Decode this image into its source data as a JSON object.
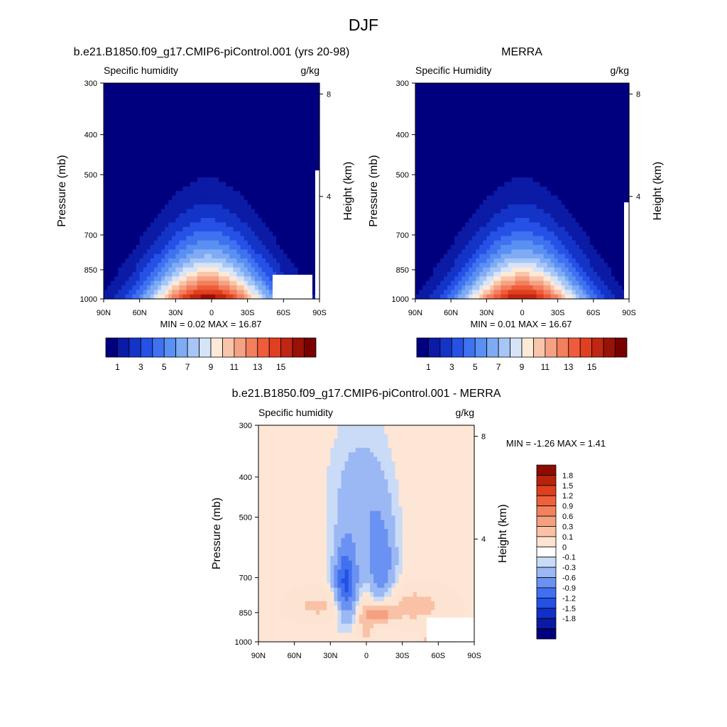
{
  "page": {
    "title": "DJF"
  },
  "colors": {
    "humidity": [
      "#00007f",
      "#0b1ba5",
      "#1434c8",
      "#2651e6",
      "#3f71f0",
      "#5a8ff3",
      "#7fabf5",
      "#a7c6f7",
      "#d6e4f8",
      "#fde9d7",
      "#f9c5aa",
      "#f5a284",
      "#f37f5e",
      "#ef5c3b",
      "#e0401f",
      "#c02611",
      "#9a1106",
      "#7a0000"
    ],
    "difference": [
      "#00007f",
      "#0a1aa4",
      "#1230c6",
      "#2450e4",
      "#4070ef",
      "#6a92f2",
      "#9bb8f4",
      "#c9dbf7",
      "#ffffff",
      "#fde4d2",
      "#f9c1a6",
      "#f5a080",
      "#f2825d",
      "#ef5f3c",
      "#de3f1d",
      "#b8230c",
      "#8c0c02"
    ]
  },
  "labels": {
    "min_max_1": "MIN =   0.02  MAX =  16.87",
    "min_max_2": "MIN =   0.01  MAX =  16.67",
    "min_max_3": "MIN =  -1.26  MAX =   1.41"
  },
  "chart_data": [
    {
      "type": "heatmap",
      "title": "b.e21.B1850.f09_g17.CMIP6-piControl.001 (yrs 20-98)",
      "left_string": "Specific humidity",
      "right_string": "g/kg",
      "ylabel": "Pressure (mb)",
      "ylabel_right": "Height (km)",
      "x_tick_labels": [
        "90N",
        "60N",
        "30N",
        "0",
        "30S",
        "60S",
        "90S"
      ],
      "y_tick_labels": [
        "300",
        "400",
        "500",
        "700",
        "850",
        "1000"
      ],
      "y_right_tick_labels": [
        "8",
        "4"
      ],
      "y_log_scale": true,
      "ylim": [
        1000,
        300
      ],
      "colorbar_levels": [
        "1",
        "3",
        "5",
        "7",
        "9",
        "11",
        "13",
        "15"
      ],
      "min": 0.02,
      "max": 16.87,
      "peak_value_near": [
        0,
        1000
      ]
    },
    {
      "type": "heatmap",
      "title": "MERRA",
      "left_string": "Specific Humidity",
      "right_string": "g/kg",
      "ylabel": "Pressure (mb)",
      "ylabel_right": "Height (km)",
      "x_tick_labels": [
        "90N",
        "60N",
        "30N",
        "0",
        "30S",
        "60S",
        "90S"
      ],
      "y_tick_labels": [
        "300",
        "400",
        "500",
        "700",
        "850",
        "1000"
      ],
      "y_right_tick_labels": [
        "8",
        "4"
      ],
      "y_log_scale": true,
      "ylim": [
        1000,
        300
      ],
      "colorbar_levels": [
        "1",
        "3",
        "5",
        "7",
        "9",
        "11",
        "13",
        "15"
      ],
      "min": 0.01,
      "max": 16.67
    },
    {
      "type": "heatmap",
      "title": "b.e21.B1850.f09_g17.CMIP6-piControl.001 - MERRA",
      "left_string": "Specific humidity",
      "right_string": "g/kg",
      "ylabel": "Pressure (mb)",
      "ylabel_right": "Height (km)",
      "x_tick_labels": [
        "90N",
        "60N",
        "30N",
        "0",
        "30S",
        "60S",
        "90S"
      ],
      "y_tick_labels": [
        "300",
        "400",
        "500",
        "700",
        "850",
        "1000"
      ],
      "y_right_tick_labels": [
        "8",
        "4"
      ],
      "y_log_scale": true,
      "ylim": [
        1000,
        300
      ],
      "colorbar_levels": [
        "1.8",
        "1.5",
        "1.2",
        "0.9",
        "0.6",
        "0.3",
        "0.1",
        "0",
        "-0.1",
        "-0.3",
        "-0.6",
        "-0.9",
        "-1.2",
        "-1.5",
        "-1.8"
      ],
      "min": -1.26,
      "max": 1.41
    }
  ]
}
